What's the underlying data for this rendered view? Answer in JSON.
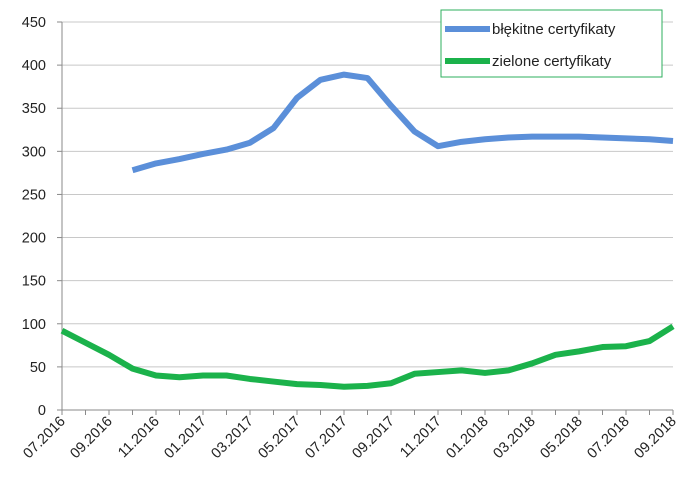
{
  "chart_data": {
    "type": "line",
    "title": "",
    "xlabel": "",
    "ylabel": "",
    "ylim": [
      0,
      450
    ],
    "yticks": [
      "0",
      "50",
      "100",
      "150",
      "200",
      "250",
      "300",
      "350",
      "400",
      "450"
    ],
    "x_tick_labels": [
      "07.2016",
      "09.2016",
      "11.2016",
      "01.2017",
      "03.2017",
      "05.2017",
      "07.2017",
      "09.2017",
      "11.2017",
      "01.2018",
      "03.2018",
      "05.2018",
      "07.2018",
      "09.2018"
    ],
    "x": [
      "07.2016",
      "08.2016",
      "09.2016",
      "10.2016",
      "11.2016",
      "12.2016",
      "01.2017",
      "02.2017",
      "03.2017",
      "04.2017",
      "05.2017",
      "06.2017",
      "07.2017",
      "08.2017",
      "09.2017",
      "10.2017",
      "11.2017",
      "12.2017",
      "01.2018",
      "02.2018",
      "03.2018",
      "04.2018",
      "05.2018",
      "06.2018",
      "07.2018",
      "08.2018",
      "09.2018"
    ],
    "grid": "horizontal",
    "legend_position": "top-right",
    "series": [
      {
        "name": "błękitne certyfikaty",
        "color": "#5B8FD9",
        "values": [
          null,
          null,
          null,
          278,
          286,
          291,
          297,
          302,
          310,
          327,
          362,
          383,
          389,
          385,
          353,
          323,
          306,
          311,
          314,
          316,
          317,
          317,
          317,
          316,
          315,
          314,
          312
        ]
      },
      {
        "name": "zielone certyfikaty",
        "color": "#1BB24B",
        "values": [
          92,
          78,
          64,
          48,
          40,
          38,
          40,
          40,
          36,
          33,
          30,
          29,
          27,
          28,
          31,
          42,
          44,
          46,
          43,
          46,
          54,
          64,
          68,
          73,
          74,
          80,
          97
        ]
      }
    ]
  }
}
